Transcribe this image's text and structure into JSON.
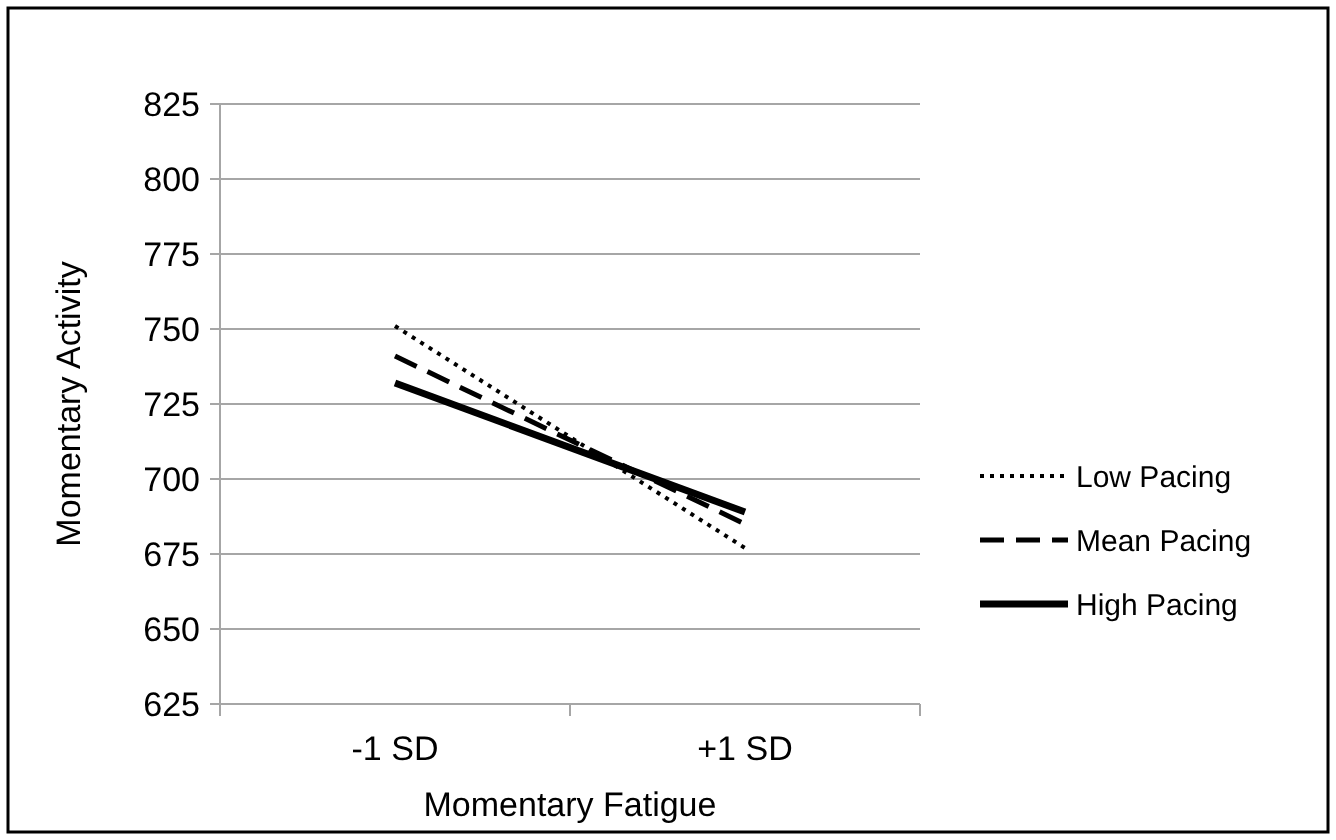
{
  "chart_data": {
    "type": "line",
    "xlabel": "Momentary Fatigue",
    "ylabel": "Momentary Activity",
    "categories": [
      "-1 SD",
      "+1 SD"
    ],
    "series": [
      {
        "name": "Low Pacing",
        "color": "#000000",
        "values": [
          751,
          677
        ],
        "line_style": "dotted"
      },
      {
        "name": "Mean Pacing",
        "color": "#000000",
        "values": [
          741,
          685
        ],
        "line_style": "dashed"
      },
      {
        "name": "High Pacing",
        "color": "#000000",
        "values": [
          732,
          689
        ],
        "line_style": "solid"
      }
    ],
    "ylim": [
      625,
      825
    ],
    "yticks": [
      625,
      650,
      675,
      700,
      725,
      750,
      775,
      800,
      825
    ],
    "grid": "y",
    "legend": "right",
    "marker": "none"
  }
}
